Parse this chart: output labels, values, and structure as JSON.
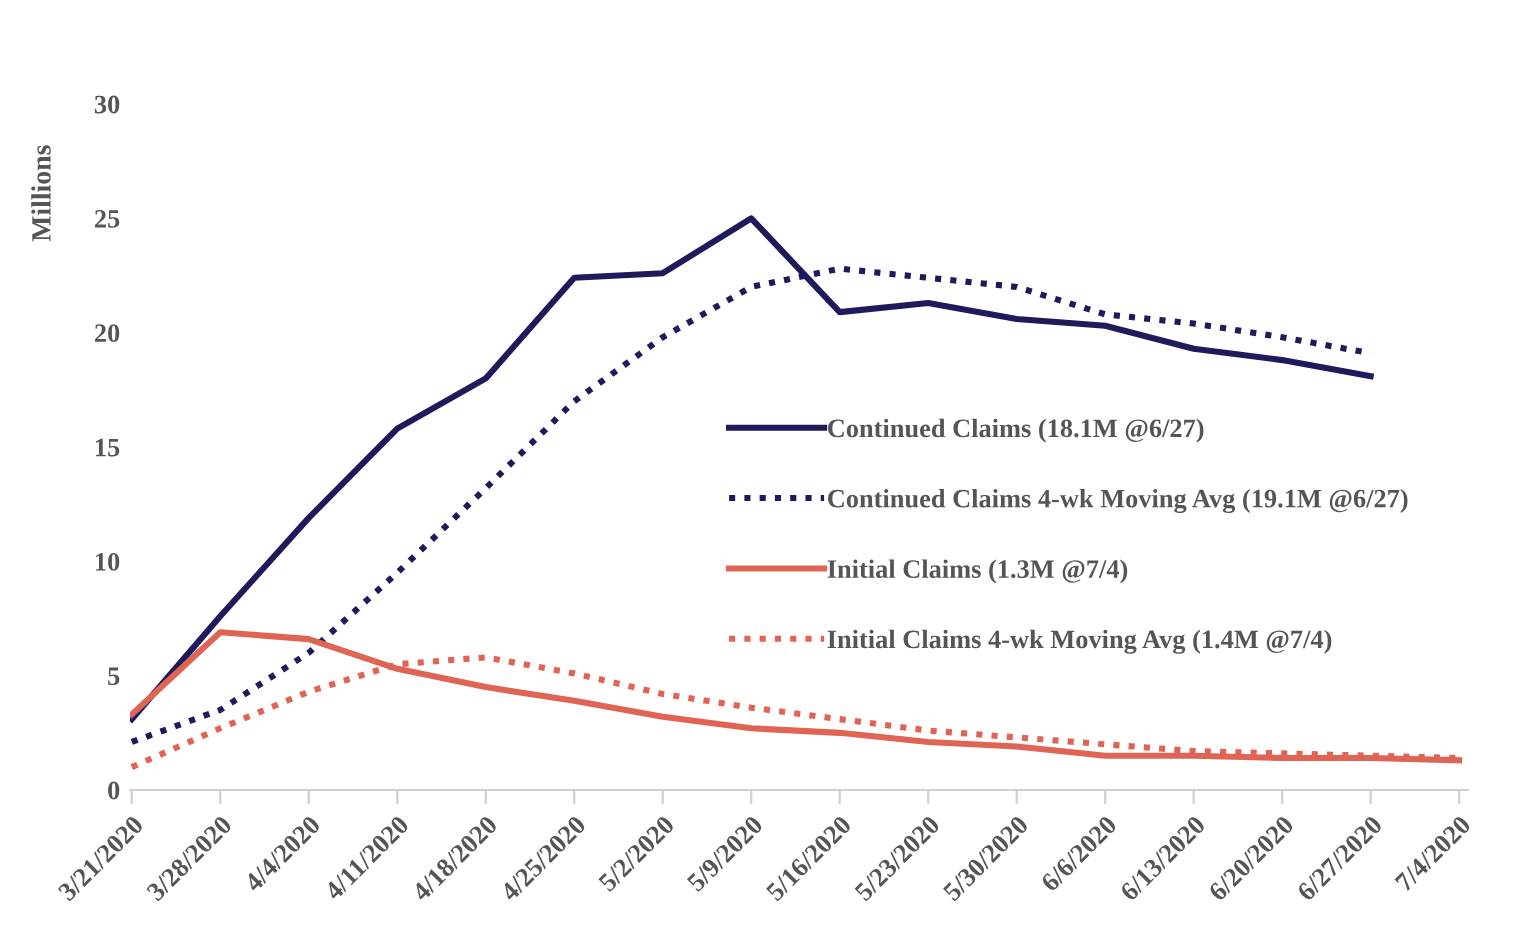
{
  "chart_data": {
    "type": "line",
    "ylabel": "Millions",
    "categories": [
      "3/21/2020",
      "3/28/2020",
      "4/4/2020",
      "4/11/2020",
      "4/18/2020",
      "4/25/2020",
      "5/2/2020",
      "5/9/2020",
      "5/16/2020",
      "5/23/2020",
      "5/30/2020",
      "6/6/2020",
      "6/13/2020",
      "6/20/2020",
      "6/27/2020",
      "7/4/2020"
    ],
    "series": [
      {
        "name": "Continued Claims (18.1M @6/27)",
        "color": "#1f1a5c",
        "line_style": "solid",
        "values": [
          3.1,
          7.6,
          11.9,
          15.8,
          18.0,
          22.4,
          22.6,
          25.0,
          20.9,
          21.3,
          20.6,
          20.3,
          19.3,
          18.8,
          18.1,
          null
        ]
      },
      {
        "name": "Continued Claims 4-wk Moving Avg (19.1M @6/27)",
        "color": "#1f1a5c",
        "line_style": "dotted",
        "values": [
          2.1,
          3.5,
          6.0,
          9.5,
          13.2,
          17.0,
          19.8,
          22.0,
          22.8,
          22.4,
          22.0,
          20.8,
          20.4,
          19.8,
          19.1,
          null
        ]
      },
      {
        "name": "Initial Claims (1.3M @7/4)",
        "color": "#e06454",
        "line_style": "solid",
        "values": [
          3.3,
          6.9,
          6.6,
          5.3,
          4.5,
          3.9,
          3.2,
          2.7,
          2.5,
          2.1,
          1.9,
          1.5,
          1.5,
          1.4,
          1.4,
          1.3
        ]
      },
      {
        "name": "Initial Claims 4-wk Moving Avg (1.4M @7/4)",
        "color": "#e06454",
        "line_style": "dotted",
        "values": [
          1.0,
          2.7,
          4.3,
          5.5,
          5.8,
          5.1,
          4.2,
          3.6,
          3.1,
          2.6,
          2.3,
          2.0,
          1.7,
          1.6,
          1.5,
          1.4
        ]
      }
    ],
    "ylim": [
      0,
      30
    ],
    "yticks": [
      0,
      5,
      10,
      15,
      20,
      25,
      30
    ],
    "grid": false,
    "legend": "right",
    "marker": "none"
  }
}
